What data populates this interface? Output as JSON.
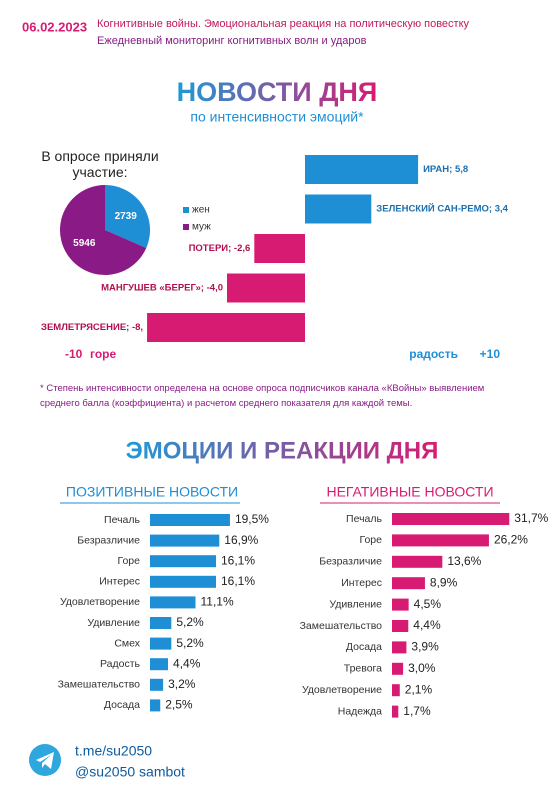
{
  "header": {
    "date": "06.02.2023",
    "line1": "Когнитивные войны. Эмоциональная реакция на политическую повестку",
    "line2": "Ежедневный мониторинг когнитивных волн и ударов"
  },
  "title": "НОВОСТИ ДНЯ",
  "subtitle": "по интенсивности эмоций*",
  "section2_title": "ЭМОЦИИ И РЕАКЦИИ ДНЯ",
  "footer": {
    "link": "t.me/su2050",
    "bot": "@su2050 sambot"
  },
  "chart_data": [
    {
      "type": "pie",
      "title": "В опросе приняли участие:",
      "categories": [
        "жен",
        "муж"
      ],
      "values": [
        2739,
        5946
      ],
      "colors": [
        "#1e8fd5",
        "#8a1a86"
      ]
    },
    {
      "type": "bar",
      "orientation": "horizontal",
      "categories": [
        "ИРАН; 5,8",
        "ЗЕЛЕНСКИЙ САН-РЕМО; 3,4",
        "ПОТЕРИ; -2,6",
        "МАНГУШЕВ «БЕРЕГ»; -4,0",
        "ЗЕМЛЕТРЯСЕНИЕ; -8,"
      ],
      "values": [
        5.8,
        3.4,
        -2.6,
        -4.0,
        -8.1
      ],
      "positive_color": "#1e8fd5",
      "negative_color": "#d81b72",
      "xlim": [
        -10,
        10
      ],
      "xticks": [
        {
          "value": -10,
          "label": "-10"
        },
        {
          "value": 10,
          "label": "+10"
        }
      ],
      "low_label": "горе",
      "high_label": "радость",
      "note": "* Степень интенсивности определена на основе опроса подписчиков канала «КВойны» выявлением среднего балла (коэффициента) и расчетом среднего показателя для каждой темы."
    },
    {
      "type": "bar",
      "orientation": "horizontal",
      "title": "ПОЗИТИВНЫЕ НОВОСТИ",
      "color": "#1e8fd5",
      "categories": [
        "Печаль",
        "Безразличие",
        "Горе",
        "Интерес",
        "Удовлетворение",
        "Удивление",
        "Смех",
        "Радость",
        "Замешательство",
        "Досада"
      ],
      "values": [
        19.5,
        16.9,
        16.1,
        16.1,
        11.1,
        5.2,
        5.2,
        4.4,
        3.2,
        2.5
      ],
      "value_labels": [
        "19,5%",
        "16,9%",
        "16,1%",
        "16,1%",
        "11,1%",
        "5,2%",
        "5,2%",
        "4,4%",
        "3,2%",
        "2,5%"
      ]
    },
    {
      "type": "bar",
      "orientation": "horizontal",
      "title": "НЕГАТИВНЫЕ НОВОСТИ",
      "color": "#d81b72",
      "categories": [
        "Печаль",
        "Горе",
        "Безразличие",
        "Интерес",
        "Удивление",
        "Замешательство",
        "Досада",
        "Тревога",
        "Удовлетворение",
        "Надежда"
      ],
      "values": [
        31.7,
        26.2,
        13.6,
        8.9,
        4.5,
        4.4,
        3.9,
        3.0,
        2.1,
        1.7
      ],
      "value_labels": [
        "31,7%",
        "26,2%",
        "13,6%",
        "8,9%",
        "4,5%",
        "4,4%",
        "3,9%",
        "3,0%",
        "2,1%",
        "1,7%"
      ]
    }
  ]
}
